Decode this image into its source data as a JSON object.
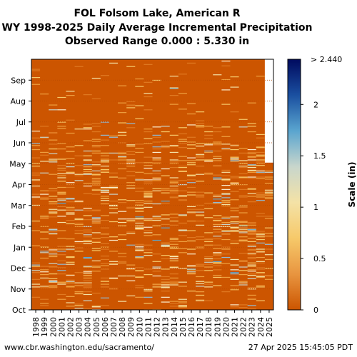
{
  "title_lines": [
    "FOL Folsom Lake, American R",
    "WY 1998-2025 Daily Average Incremental Precipitation",
    "Observed Range 0.000 : 5.330 in"
  ],
  "footer": {
    "left": "www.cbr.washington.edu/sacramento/",
    "right": "27 Apr 2025 15:45:05 PDT"
  },
  "chart_data": {
    "type": "heatmap",
    "x_label": "",
    "x_categories": [
      "1998",
      "1999",
      "2000",
      "2001",
      "2002",
      "2003",
      "2004",
      "2005",
      "2006",
      "2007",
      "2008",
      "2009",
      "2010",
      "2011",
      "2012",
      "2013",
      "2014",
      "2015",
      "2016",
      "2017",
      "2018",
      "2019",
      "2020",
      "2021",
      "2022",
      "2023",
      "2024",
      "2025"
    ],
    "y_ticks": [
      "Oct",
      "Nov",
      "Dec",
      "Jan",
      "Feb",
      "Mar",
      "Apr",
      "May",
      "Jun",
      "Jul",
      "Aug",
      "Sep"
    ],
    "last_year_data_through": "Apr",
    "colorbar": {
      "label": "Scale (in)",
      "range": [
        0,
        2.44
      ],
      "ticks": [
        "0",
        "0.5",
        "1",
        "1.5",
        "2"
      ],
      "max_label": "> 2.440",
      "stops": [
        "#cc5500",
        "#e89540",
        "#f6c96a",
        "#f4e2a6",
        "#c8d6cc",
        "#5aa5cf",
        "#1a4fa0",
        "#000a5e"
      ]
    },
    "background_color": "#cc5500",
    "observed_range": [
      0.0,
      5.33
    ]
  }
}
